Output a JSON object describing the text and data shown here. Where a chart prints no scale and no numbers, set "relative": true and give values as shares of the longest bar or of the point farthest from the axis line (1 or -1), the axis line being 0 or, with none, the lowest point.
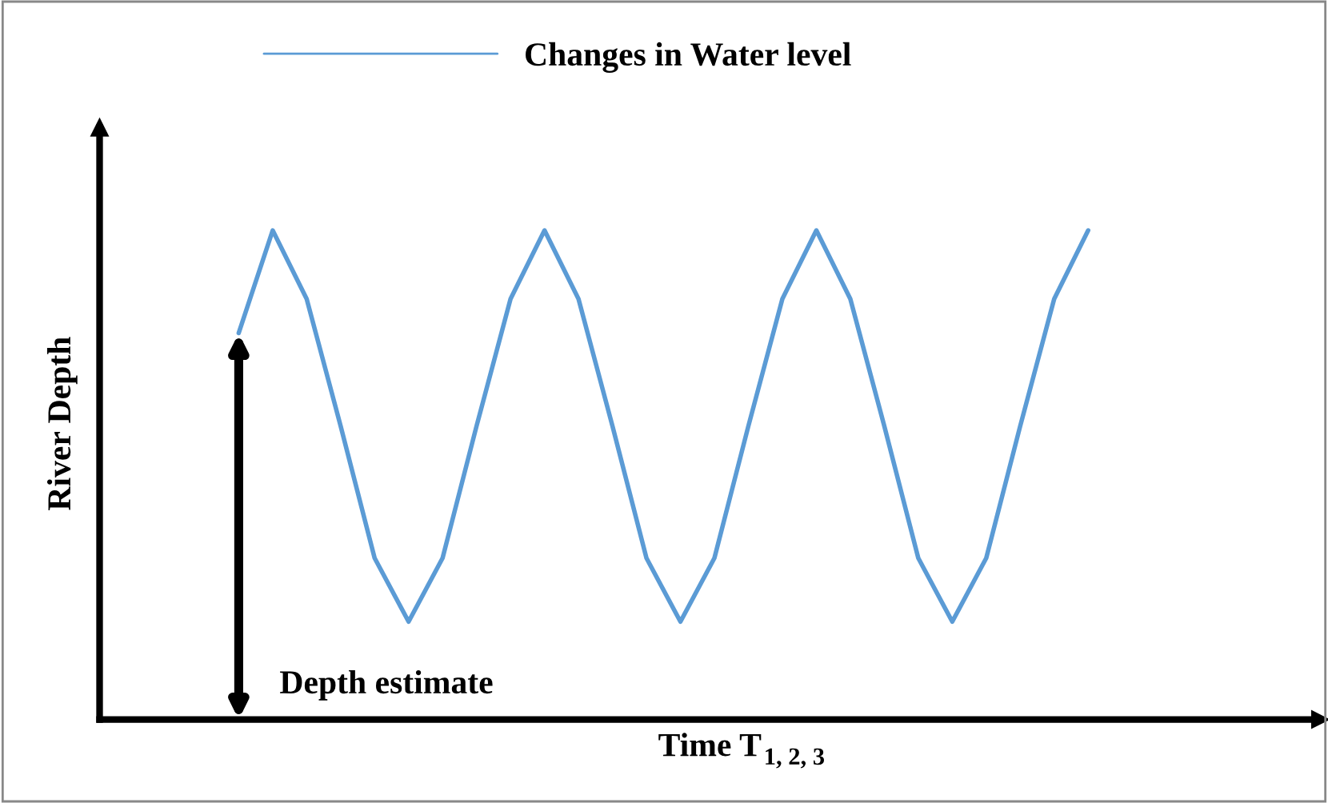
{
  "chart_data": {
    "type": "line",
    "relative": true,
    "xlabel": "Time T$_{1, 2, 3}$",
    "ylabel": "River Depth",
    "legend": "top",
    "marker": "none",
    "line_style": "solid",
    "categories": [
      null,
      null,
      null,
      null,
      null,
      null,
      null,
      null,
      null,
      null,
      null,
      null,
      null,
      null,
      null,
      null,
      null,
      null,
      null,
      null,
      null,
      null,
      null,
      null,
      null,
      null
    ],
    "series": [
      {
        "name": "Changes in Water level",
        "color": "#5b9bd5",
        "values": [
          0.79,
          1.0,
          0.86,
          0.6,
          0.33,
          0.2,
          0.33,
          0.6,
          0.86,
          1.0,
          0.86,
          0.6,
          0.33,
          0.2,
          0.33,
          0.6,
          0.86,
          1.0,
          0.86,
          0.6,
          0.33,
          0.2,
          0.33,
          0.6,
          0.86,
          1.0
        ]
      }
    ],
    "annotations": [
      "Depth estimate"
    ]
  }
}
